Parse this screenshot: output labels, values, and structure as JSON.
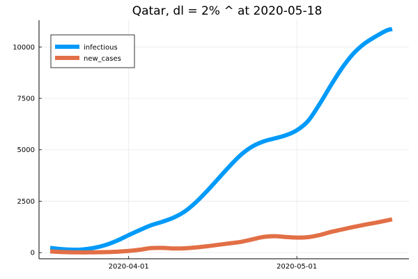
{
  "chart_data": {
    "type": "line",
    "title": "Qatar,  dl = 2% ^ at 2020-05-18",
    "xlabel": "",
    "ylabel": "",
    "x_ticks": [
      "2020-04-01",
      "2020-05-01"
    ],
    "y_ticks": [
      0,
      2500,
      5000,
      7500,
      10000
    ],
    "y_tick_labels": [
      "0",
      "2500",
      "5000",
      "7500",
      "10000"
    ],
    "xlim": [
      "2020-03-16",
      "2020-05-21"
    ],
    "ylim": [
      -300,
      11300
    ],
    "grid": true,
    "legend_position": "top-left",
    "x": [
      "2020-03-18",
      "2020-03-20",
      "2020-03-22",
      "2020-03-24",
      "2020-03-26",
      "2020-03-28",
      "2020-03-30",
      "2020-04-01",
      "2020-04-03",
      "2020-04-05",
      "2020-04-07",
      "2020-04-09",
      "2020-04-11",
      "2020-04-13",
      "2020-04-15",
      "2020-04-17",
      "2020-04-19",
      "2020-04-21",
      "2020-04-23",
      "2020-04-25",
      "2020-04-27",
      "2020-04-29",
      "2020-05-01",
      "2020-05-03",
      "2020-05-05",
      "2020-05-07",
      "2020-05-09",
      "2020-05-11",
      "2020-05-13",
      "2020-05-15",
      "2020-05-17",
      "2020-05-18"
    ],
    "series": [
      {
        "name": "infectious",
        "color": "#009AF9",
        "values": [
          230,
          170,
          140,
          160,
          240,
          380,
          590,
          850,
          1100,
          1330,
          1500,
          1700,
          2000,
          2450,
          3000,
          3600,
          4200,
          4750,
          5150,
          5400,
          5550,
          5700,
          5950,
          6400,
          7200,
          8100,
          8950,
          9650,
          10150,
          10500,
          10800,
          10870
        ]
      },
      {
        "name": "new_cases",
        "color": "#E26F46",
        "values": [
          60,
          30,
          15,
          10,
          15,
          25,
          45,
          80,
          140,
          220,
          230,
          200,
          210,
          250,
          310,
          380,
          450,
          520,
          640,
          760,
          800,
          760,
          730,
          750,
          850,
          1000,
          1120,
          1240,
          1350,
          1450,
          1560,
          1620
        ]
      }
    ]
  }
}
